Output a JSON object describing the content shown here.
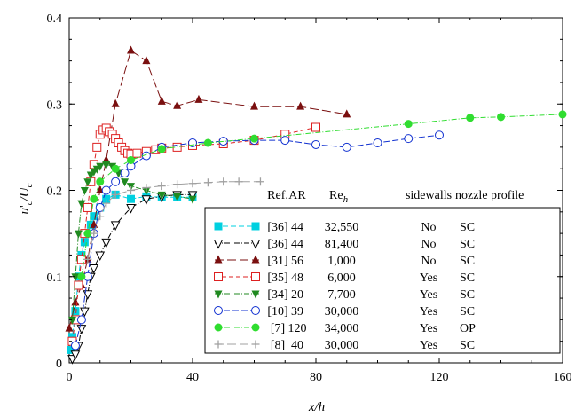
{
  "chart_data": {
    "type": "line",
    "xlabel": "x/h",
    "ylabel": "u'c/Uc",
    "xlim": [
      0,
      160
    ],
    "ylim": [
      0,
      0.4
    ],
    "xticks": [
      "0",
      "40",
      "80",
      "120",
      "160"
    ],
    "yticks": [
      "0",
      "0.1",
      "0.2",
      "0.3",
      "0.4"
    ],
    "grid": false,
    "legend_placement": "bottom-right",
    "legend_headers": [
      "Ref.",
      "AR",
      "Re",
      "sidewalls",
      "nozzle profile"
    ],
    "legend_header_re_sub": "h",
    "series": [
      {
        "ref": "[36]",
        "ar": "44",
        "re": "32,550",
        "sidewalls": "No",
        "nozzle": "SC",
        "color": "#00d0e0",
        "marker": "square-filled",
        "dash": "6,3",
        "x": [
          0.5,
          1,
          2,
          3,
          4,
          5,
          6,
          7,
          8,
          10,
          12,
          15,
          20,
          25,
          30,
          35,
          40
        ],
        "y": [
          0.015,
          0.03,
          0.06,
          0.1,
          0.125,
          0.14,
          0.15,
          0.16,
          0.17,
          0.18,
          0.19,
          0.195,
          0.19,
          0.193,
          0.192,
          0.192,
          0.192
        ]
      },
      {
        "ref": "[36]",
        "ar": "44",
        "re": "81,400",
        "sidewalls": "No",
        "nozzle": "SC",
        "color": "#000000",
        "marker": "triangle-down-open",
        "dash": "6,2,1,2",
        "x": [
          1,
          2,
          3,
          4,
          5,
          6,
          7,
          8,
          10,
          12,
          15,
          20,
          25,
          30,
          35,
          40
        ],
        "y": [
          0.005,
          0.01,
          0.02,
          0.04,
          0.06,
          0.08,
          0.1,
          0.11,
          0.125,
          0.14,
          0.16,
          0.18,
          0.19,
          0.193,
          0.195,
          0.195
        ]
      },
      {
        "ref": "[31]",
        "ar": "56",
        "re": "1,000",
        "sidewalls": "No",
        "nozzle": "SC",
        "color": "#7a0f0f",
        "marker": "triangle-up-filled",
        "dash": "10,4",
        "x": [
          0,
          2,
          4,
          6,
          8,
          10,
          12,
          15,
          20,
          25,
          30,
          35,
          42,
          60,
          75,
          90
        ],
        "y": [
          0.04,
          0.07,
          0.09,
          0.12,
          0.16,
          0.2,
          0.235,
          0.3,
          0.362,
          0.35,
          0.303,
          0.298,
          0.305,
          0.297,
          0.297,
          0.288
        ]
      },
      {
        "ref": "[35]",
        "ar": "48",
        "re": "6,000",
        "sidewalls": "Yes",
        "nozzle": "SC",
        "color": "#dd2020",
        "marker": "square-open",
        "dash": "5,3",
        "x": [
          1,
          2,
          3,
          4,
          5,
          6,
          7,
          8,
          9,
          10,
          11,
          12,
          13,
          14,
          15,
          16,
          17,
          18,
          19,
          20,
          22,
          25,
          28,
          30,
          35,
          40,
          50,
          60,
          70,
          80
        ],
        "y": [
          0.025,
          0.05,
          0.09,
          0.12,
          0.15,
          0.18,
          0.21,
          0.23,
          0.25,
          0.265,
          0.27,
          0.272,
          0.268,
          0.265,
          0.26,
          0.255,
          0.25,
          0.246,
          0.243,
          0.242,
          0.243,
          0.245,
          0.247,
          0.249,
          0.25,
          0.252,
          0.254,
          0.258,
          0.265,
          0.273
        ]
      },
      {
        "ref": "[34]",
        "ar": "20",
        "re": "7,700",
        "sidewalls": "Yes",
        "nozzle": "SC",
        "color": "#208a20",
        "marker": "triangle-down-filled",
        "dash": "6,2,1,2",
        "x": [
          1,
          2,
          3,
          4,
          5,
          6,
          7,
          8,
          9,
          10,
          12,
          14,
          16,
          18,
          20,
          25,
          30,
          35,
          40
        ],
        "y": [
          0.05,
          0.1,
          0.15,
          0.185,
          0.2,
          0.21,
          0.218,
          0.222,
          0.225,
          0.228,
          0.23,
          0.228,
          0.22,
          0.21,
          0.205,
          0.2,
          0.195,
          0.193,
          0.19
        ]
      },
      {
        "ref": "[10]",
        "ar": "39",
        "re": "30,000",
        "sidewalls": "Yes",
        "nozzle": "SC",
        "color": "#1030d0",
        "marker": "circle-open",
        "dash": "7,3",
        "x": [
          2,
          4,
          6,
          8,
          10,
          12,
          15,
          18,
          20,
          25,
          30,
          40,
          50,
          60,
          70,
          80,
          90,
          100,
          110,
          120
        ],
        "y": [
          0.02,
          0.05,
          0.1,
          0.15,
          0.18,
          0.2,
          0.21,
          0.22,
          0.228,
          0.24,
          0.25,
          0.255,
          0.257,
          0.258,
          0.258,
          0.253,
          0.25,
          0.255,
          0.26,
          0.264
        ]
      },
      {
        "ref": "[7]",
        "ar": "120",
        "re": "34,000",
        "sidewalls": "Yes",
        "nozzle": "OP",
        "color": "#30dd30",
        "marker": "circle-filled",
        "dash": "6,2,1,2",
        "x": [
          4,
          6,
          8,
          10,
          15,
          20,
          30,
          45,
          60,
          110,
          130,
          140,
          160
        ],
        "y": [
          0.1,
          0.15,
          0.19,
          0.21,
          0.225,
          0.235,
          0.248,
          0.255,
          0.26,
          0.277,
          0.284,
          0.285,
          0.288
        ]
      },
      {
        "ref": "[8]",
        "ar": "40",
        "re": "30,000",
        "sidewalls": "Yes",
        "nozzle": "SC",
        "color": "#a0a0a0",
        "marker": "plus",
        "dash": "10,4",
        "x": [
          6,
          8,
          10,
          12,
          15,
          20,
          25,
          30,
          35,
          40,
          45,
          50,
          55,
          62
        ],
        "y": [
          0.12,
          0.15,
          0.17,
          0.185,
          0.195,
          0.2,
          0.203,
          0.205,
          0.207,
          0.208,
          0.209,
          0.21,
          0.21,
          0.21
        ]
      }
    ]
  }
}
